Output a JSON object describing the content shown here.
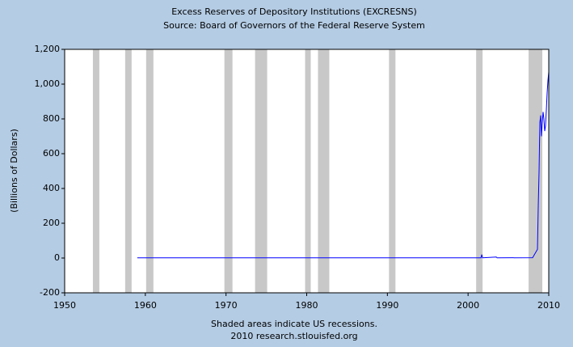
{
  "chart_data": {
    "type": "line",
    "title": "Excess Reserves of Depository Institutions (EXCRESNS)",
    "subtitle": "Source: Board of Governors of the Federal Reserve System",
    "ylabel": "(Billions of Dollars)",
    "xlim": [
      1950,
      2010
    ],
    "xticks": [
      1950,
      1960,
      1970,
      1980,
      1990,
      2000,
      2010
    ],
    "ylim": [
      -200,
      1200
    ],
    "yticks": [
      -200,
      0,
      200,
      400,
      600,
      800,
      {
        "value": 1000,
        "label": "1,000"
      },
      {
        "value": 1200,
        "label": "1,200"
      }
    ],
    "x": [
      1959,
      1970,
      1980,
      1990,
      2000,
      2001.6,
      2001.7,
      2001.8,
      2003.5,
      2003.6,
      2008.0,
      2008.6,
      2008.7,
      2008.8,
      2008.85,
      2008.9,
      2009.0,
      2009.1,
      2009.2,
      2009.3,
      2009.4,
      2009.5,
      2009.6,
      2009.7,
      2009.8,
      2009.9,
      2010.0
    ],
    "series": [
      {
        "color": "#0000ff",
        "values": [
          1,
          1,
          1,
          1,
          1,
          1,
          20,
          1,
          6,
          1,
          2,
          50,
          300,
          500,
          650,
          780,
          820,
          700,
          780,
          840,
          800,
          730,
          760,
          850,
          950,
          1020,
          1070
        ]
      }
    ],
    "recessions": [
      [
        1953.5,
        1954.3
      ],
      [
        1957.5,
        1958.3
      ],
      [
        1960.1,
        1961.0
      ],
      [
        1969.8,
        1970.8
      ],
      [
        1973.6,
        1975.1
      ],
      [
        1979.8,
        1980.5
      ],
      [
        1981.4,
        1982.8
      ],
      [
        1990.2,
        1991.0
      ],
      [
        2001.0,
        2001.8
      ],
      [
        2007.5,
        2009.2
      ]
    ],
    "recession_color": "#c8c8c8",
    "notes": [
      "Shaded areas indicate US recessions.",
      "2010 research.stlouisfed.org"
    ]
  }
}
